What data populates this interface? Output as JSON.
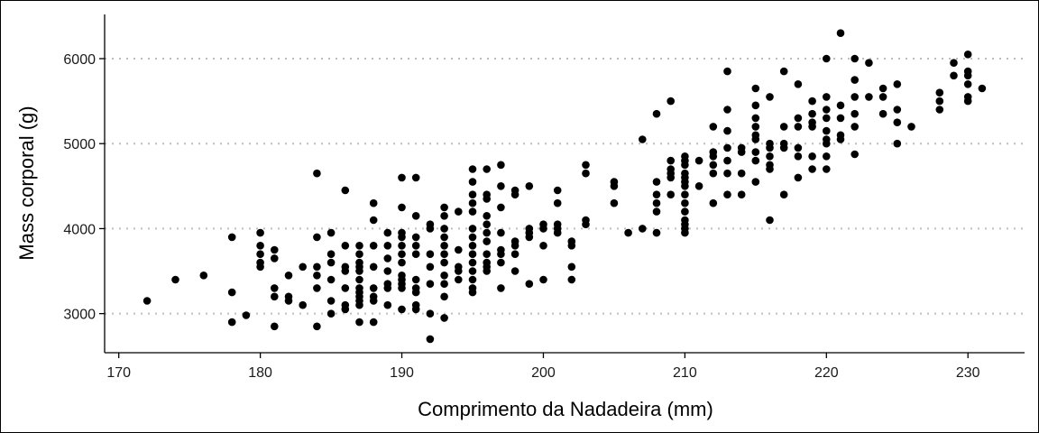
{
  "chart_data": {
    "type": "scatter",
    "title": "",
    "xlabel": "Comprimento da Nadadeira (mm)",
    "ylabel": "Mass corporal (g)",
    "xlim": [
      169,
      234
    ],
    "ylim": [
      2540,
      6520
    ],
    "xticks": [
      170,
      180,
      190,
      200,
      210,
      220,
      230
    ],
    "yticks": [
      3000,
      4000,
      5000,
      6000
    ],
    "xtick_labels": [
      "170",
      "180",
      "190",
      "200",
      "210",
      "220",
      "230"
    ],
    "ytick_labels": [
      "3000",
      "4000",
      "5000",
      "6000"
    ],
    "grid": "horizontal dotted at y ticks",
    "legend": "none",
    "colors": {
      "point": "#000000",
      "grid": "#bdbdbd",
      "axis": "#000000"
    },
    "points": [
      [
        172,
        3150
      ],
      [
        174,
        3400
      ],
      [
        176,
        3450
      ],
      [
        178,
        3900
      ],
      [
        178,
        3250
      ],
      [
        178,
        2900
      ],
      [
        179,
        2980
      ],
      [
        180,
        3950
      ],
      [
        180,
        3800
      ],
      [
        180,
        3700
      ],
      [
        180,
        3600
      ],
      [
        180,
        3550
      ],
      [
        181,
        3750
      ],
      [
        181,
        3650
      ],
      [
        181,
        3300
      ],
      [
        181,
        3200
      ],
      [
        181,
        2850
      ],
      [
        182,
        3200
      ],
      [
        182,
        3150
      ],
      [
        182,
        3450
      ],
      [
        183,
        3100
      ],
      [
        183,
        3550
      ],
      [
        184,
        4650
      ],
      [
        184,
        3900
      ],
      [
        184,
        3550
      ],
      [
        184,
        3450
      ],
      [
        184,
        3300
      ],
      [
        184,
        2850
      ],
      [
        185,
        3950
      ],
      [
        185,
        3700
      ],
      [
        185,
        3600
      ],
      [
        185,
        3400
      ],
      [
        185,
        3150
      ],
      [
        185,
        3000
      ],
      [
        186,
        4450
      ],
      [
        186,
        3800
      ],
      [
        186,
        3550
      ],
      [
        186,
        3500
      ],
      [
        186,
        3300
      ],
      [
        186,
        3100
      ],
      [
        186,
        3050
      ],
      [
        187,
        3800
      ],
      [
        187,
        3700
      ],
      [
        187,
        3600
      ],
      [
        187,
        3550
      ],
      [
        187,
        3500
      ],
      [
        187,
        3400
      ],
      [
        187,
        3300
      ],
      [
        187,
        3250
      ],
      [
        187,
        3200
      ],
      [
        187,
        3150
      ],
      [
        187,
        3100
      ],
      [
        187,
        2900
      ],
      [
        188,
        4300
      ],
      [
        188,
        4100
      ],
      [
        188,
        3800
      ],
      [
        188,
        3550
      ],
      [
        188,
        3300
      ],
      [
        188,
        3200
      ],
      [
        188,
        3150
      ],
      [
        188,
        2900
      ],
      [
        189,
        3950
      ],
      [
        189,
        3800
      ],
      [
        189,
        3650
      ],
      [
        189,
        3500
      ],
      [
        189,
        3350
      ],
      [
        189,
        3300
      ],
      [
        189,
        3100
      ],
      [
        190,
        4600
      ],
      [
        190,
        4250
      ],
      [
        190,
        3950
      ],
      [
        190,
        3900
      ],
      [
        190,
        3800
      ],
      [
        190,
        3700
      ],
      [
        190,
        3600
      ],
      [
        190,
        3450
      ],
      [
        190,
        3400
      ],
      [
        190,
        3350
      ],
      [
        190,
        3300
      ],
      [
        190,
        3050
      ],
      [
        191,
        4600
      ],
      [
        191,
        4150
      ],
      [
        191,
        3900
      ],
      [
        191,
        3800
      ],
      [
        191,
        3700
      ],
      [
        191,
        3400
      ],
      [
        191,
        3300
      ],
      [
        191,
        3250
      ],
      [
        191,
        3100
      ],
      [
        191,
        3050
      ],
      [
        192,
        4050
      ],
      [
        192,
        4000
      ],
      [
        192,
        3700
      ],
      [
        192,
        3550
      ],
      [
        192,
        3350
      ],
      [
        192,
        3000
      ],
      [
        192,
        2700
      ],
      [
        193,
        4250
      ],
      [
        193,
        4150
      ],
      [
        193,
        4000
      ],
      [
        193,
        3900
      ],
      [
        193,
        3800
      ],
      [
        193,
        3700
      ],
      [
        193,
        3600
      ],
      [
        193,
        3450
      ],
      [
        193,
        3350
      ],
      [
        193,
        3200
      ],
      [
        193,
        2950
      ],
      [
        194,
        4200
      ],
      [
        194,
        3750
      ],
      [
        194,
        3550
      ],
      [
        194,
        3500
      ],
      [
        194,
        3400
      ],
      [
        195,
        4700
      ],
      [
        195,
        4550
      ],
      [
        195,
        4400
      ],
      [
        195,
        4300
      ],
      [
        195,
        4200
      ],
      [
        195,
        4000
      ],
      [
        195,
        3900
      ],
      [
        195,
        3800
      ],
      [
        195,
        3700
      ],
      [
        195,
        3600
      ],
      [
        195,
        3500
      ],
      [
        195,
        3400
      ],
      [
        195,
        3300
      ],
      [
        195,
        3250
      ],
      [
        196,
        4700
      ],
      [
        196,
        4400
      ],
      [
        196,
        4350
      ],
      [
        196,
        4150
      ],
      [
        196,
        4050
      ],
      [
        196,
        3950
      ],
      [
        196,
        3850
      ],
      [
        196,
        3700
      ],
      [
        196,
        3600
      ],
      [
        196,
        3550
      ],
      [
        196,
        3500
      ],
      [
        197,
        4750
      ],
      [
        197,
        4500
      ],
      [
        197,
        4250
      ],
      [
        197,
        3950
      ],
      [
        197,
        3750
      ],
      [
        197,
        3700
      ],
      [
        197,
        3600
      ],
      [
        197,
        3300
      ],
      [
        198,
        4450
      ],
      [
        198,
        4400
      ],
      [
        198,
        3850
      ],
      [
        198,
        3800
      ],
      [
        198,
        3700
      ],
      [
        198,
        3500
      ],
      [
        199,
        4500
      ],
      [
        199,
        4000
      ],
      [
        199,
        3950
      ],
      [
        199,
        3900
      ],
      [
        199,
        3350
      ],
      [
        200,
        4050
      ],
      [
        200,
        4000
      ],
      [
        200,
        3800
      ],
      [
        200,
        3400
      ],
      [
        201,
        4450
      ],
      [
        201,
        4300
      ],
      [
        201,
        4050
      ],
      [
        201,
        4000
      ],
      [
        201,
        3950
      ],
      [
        202,
        3850
      ],
      [
        202,
        3800
      ],
      [
        202,
        3550
      ],
      [
        202,
        3400
      ],
      [
        203,
        4750
      ],
      [
        203,
        4650
      ],
      [
        203,
        4100
      ],
      [
        203,
        4050
      ],
      [
        205,
        4550
      ],
      [
        205,
        4500
      ],
      [
        205,
        4300
      ],
      [
        206,
        3950
      ],
      [
        207,
        5050
      ],
      [
        207,
        4000
      ],
      [
        208,
        5350
      ],
      [
        208,
        4550
      ],
      [
        208,
        4400
      ],
      [
        208,
        4300
      ],
      [
        208,
        4200
      ],
      [
        208,
        3950
      ],
      [
        209,
        5500
      ],
      [
        209,
        4800
      ],
      [
        209,
        4700
      ],
      [
        209,
        4650
      ],
      [
        209,
        4600
      ],
      [
        209,
        4400
      ],
      [
        210,
        4850
      ],
      [
        210,
        4800
      ],
      [
        210,
        4750
      ],
      [
        210,
        4650
      ],
      [
        210,
        4600
      ],
      [
        210,
        4550
      ],
      [
        210,
        4500
      ],
      [
        210,
        4400
      ],
      [
        210,
        4300
      ],
      [
        210,
        4200
      ],
      [
        210,
        4100
      ],
      [
        210,
        4050
      ],
      [
        210,
        4000
      ],
      [
        210,
        3950
      ],
      [
        211,
        4800
      ],
      [
        211,
        4500
      ],
      [
        212,
        5200
      ],
      [
        212,
        4900
      ],
      [
        212,
        4850
      ],
      [
        212,
        4750
      ],
      [
        212,
        4650
      ],
      [
        212,
        4300
      ],
      [
        213,
        5850
      ],
      [
        213,
        5400
      ],
      [
        213,
        5150
      ],
      [
        213,
        4950
      ],
      [
        213,
        4800
      ],
      [
        213,
        4650
      ],
      [
        213,
        4400
      ],
      [
        214,
        4950
      ],
      [
        214,
        4900
      ],
      [
        214,
        4650
      ],
      [
        214,
        4400
      ],
      [
        215,
        5650
      ],
      [
        215,
        5450
      ],
      [
        215,
        5300
      ],
      [
        215,
        5200
      ],
      [
        215,
        5100
      ],
      [
        215,
        5050
      ],
      [
        215,
        4900
      ],
      [
        215,
        4800
      ],
      [
        215,
        4550
      ],
      [
        216,
        5550
      ],
      [
        216,
        5000
      ],
      [
        216,
        4950
      ],
      [
        216,
        4850
      ],
      [
        216,
        4750
      ],
      [
        216,
        4700
      ],
      [
        216,
        4100
      ],
      [
        217,
        5850
      ],
      [
        217,
        5200
      ],
      [
        217,
        5000
      ],
      [
        217,
        4950
      ],
      [
        217,
        4400
      ],
      [
        218,
        5700
      ],
      [
        218,
        5300
      ],
      [
        218,
        5200
      ],
      [
        218,
        4950
      ],
      [
        218,
        4850
      ],
      [
        218,
        4600
      ],
      [
        219,
        5500
      ],
      [
        219,
        5350
      ],
      [
        219,
        5250
      ],
      [
        219,
        5200
      ],
      [
        219,
        4850
      ],
      [
        219,
        4700
      ],
      [
        220,
        6000
      ],
      [
        220,
        5550
      ],
      [
        220,
        5400
      ],
      [
        220,
        5300
      ],
      [
        220,
        5150
      ],
      [
        220,
        5050
      ],
      [
        220,
        5000
      ],
      [
        220,
        4850
      ],
      [
        220,
        4700
      ],
      [
        221,
        6300
      ],
      [
        221,
        5450
      ],
      [
        221,
        5300
      ],
      [
        221,
        5100
      ],
      [
        221,
        5050
      ],
      [
        222,
        6000
      ],
      [
        222,
        5750
      ],
      [
        222,
        5550
      ],
      [
        222,
        5350
      ],
      [
        222,
        5200
      ],
      [
        222,
        4875
      ],
      [
        223,
        5950
      ],
      [
        223,
        5550
      ],
      [
        224,
        5650
      ],
      [
        224,
        5550
      ],
      [
        224,
        5350
      ],
      [
        225,
        5700
      ],
      [
        225,
        5400
      ],
      [
        225,
        5250
      ],
      [
        225,
        5000
      ],
      [
        226,
        5200
      ],
      [
        228,
        5600
      ],
      [
        228,
        5500
      ],
      [
        228,
        5400
      ],
      [
        229,
        5950
      ],
      [
        229,
        5800
      ],
      [
        230,
        6050
      ],
      [
        230,
        5850
      ],
      [
        230,
        5800
      ],
      [
        230,
        5700
      ],
      [
        230,
        5550
      ],
      [
        230,
        5500
      ],
      [
        231,
        5650
      ]
    ]
  }
}
